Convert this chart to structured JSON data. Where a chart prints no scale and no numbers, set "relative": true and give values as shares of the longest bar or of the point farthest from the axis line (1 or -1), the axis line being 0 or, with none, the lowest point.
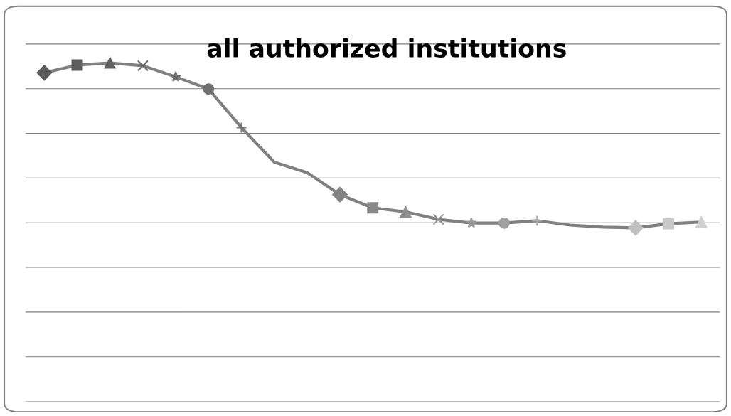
{
  "chart_data": {
    "type": "line",
    "title": "all authorized institutions",
    "relative": true,
    "categories": [
      null,
      null,
      null,
      null,
      null,
      null,
      null,
      null,
      null,
      null,
      null,
      null,
      null,
      null,
      null,
      null,
      null,
      null,
      null,
      null,
      null
    ],
    "series": [
      {
        "color": "#808080",
        "values": [
          0.971,
          0.994,
          1,
          0.992,
          0.959,
          0.923,
          0.809,
          0.707,
          0.676,
          0.611,
          0.572,
          0.56,
          0.538,
          0.527,
          0.527,
          0.534,
          0.521,
          0.515,
          0.513,
          0.525,
          0.53
        ],
        "colors": [
          "#5a5a5a",
          "#5e5e5e",
          "#636363",
          "#686868",
          "#6c6c6c",
          "#707070",
          "#757575",
          "#7a7a7a",
          "#7e7e7e",
          "#838383",
          "#888888",
          "#8d8d8d",
          "#939393",
          "#999999",
          "#a0a0a0",
          "#a8a8a8",
          "#b0b0b0",
          "#b8b8b8",
          "#c0c0c0",
          "#c8c8c8",
          "#d0d0d0"
        ],
        "marker": [
          "diamond",
          "square",
          "triangle",
          "cross",
          "star",
          "circle",
          "plus",
          "none",
          "none",
          "diamond",
          "square",
          "triangle",
          "cross",
          "star",
          "circle",
          "plus",
          "none",
          "none",
          "diamond",
          "square",
          "triangle"
        ]
      }
    ],
    "grid": "y",
    "line_style": "solid",
    "legend": false
  }
}
